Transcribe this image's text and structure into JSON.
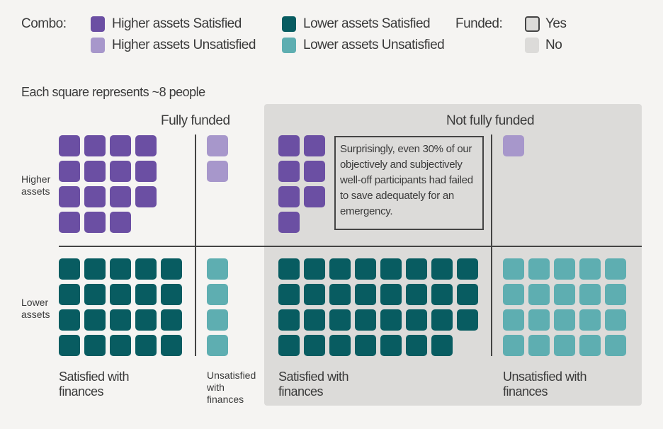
{
  "legend": {
    "combo_label": "Combo:",
    "funded_label": "Funded:",
    "items": [
      {
        "label": "Higher assets Satisfied",
        "color": "#6b4fa3"
      },
      {
        "label": "Higher assets Unsatisfied",
        "color": "#a797cb"
      },
      {
        "label": "Lower assets Satisfied",
        "color": "#085c61"
      },
      {
        "label": "Lower assets Unsatisfied",
        "color": "#5eaeb1"
      }
    ],
    "funded": [
      {
        "label": "Yes"
      },
      {
        "label": "No",
        "color": "#dcdbd9"
      }
    ]
  },
  "note": "Each square represents ~8 people",
  "columns": {
    "funded": "Fully funded",
    "not_funded": "Not fully funded"
  },
  "rows": {
    "higher": "Higher assets",
    "lower": "Lower assets"
  },
  "bottom_labels": {
    "funded_satisfied": "Satisfied with finances",
    "funded_unsatisfied": "Unsatisfied with finances",
    "not_satisfied": "Satisfied with finances",
    "not_unsatisfied": "Unsatisfied with finances"
  },
  "annotation": "Surprisingly, even 30% of our objectively and subjectively well-off participants had failed to save adequately for an emergency.",
  "chart_data": {
    "type": "waffle",
    "unit_people": 8,
    "groups": [
      {
        "assets": "Higher",
        "funded": "Yes",
        "satisfied": "Satisfied",
        "squares": 15
      },
      {
        "assets": "Higher",
        "funded": "Yes",
        "satisfied": "Unsatisfied",
        "squares": 2
      },
      {
        "assets": "Higher",
        "funded": "No",
        "satisfied": "Satisfied",
        "squares": 7
      },
      {
        "assets": "Higher",
        "funded": "No",
        "satisfied": "Unsatisfied",
        "squares": 1
      },
      {
        "assets": "Lower",
        "funded": "Yes",
        "satisfied": "Satisfied",
        "squares": 20
      },
      {
        "assets": "Lower",
        "funded": "Yes",
        "satisfied": "Unsatisfied",
        "squares": 4
      },
      {
        "assets": "Lower",
        "funded": "No",
        "satisfied": "Satisfied",
        "squares": 31
      },
      {
        "assets": "Lower",
        "funded": "No",
        "satisfied": "Unsatisfied",
        "squares": 20
      }
    ]
  }
}
